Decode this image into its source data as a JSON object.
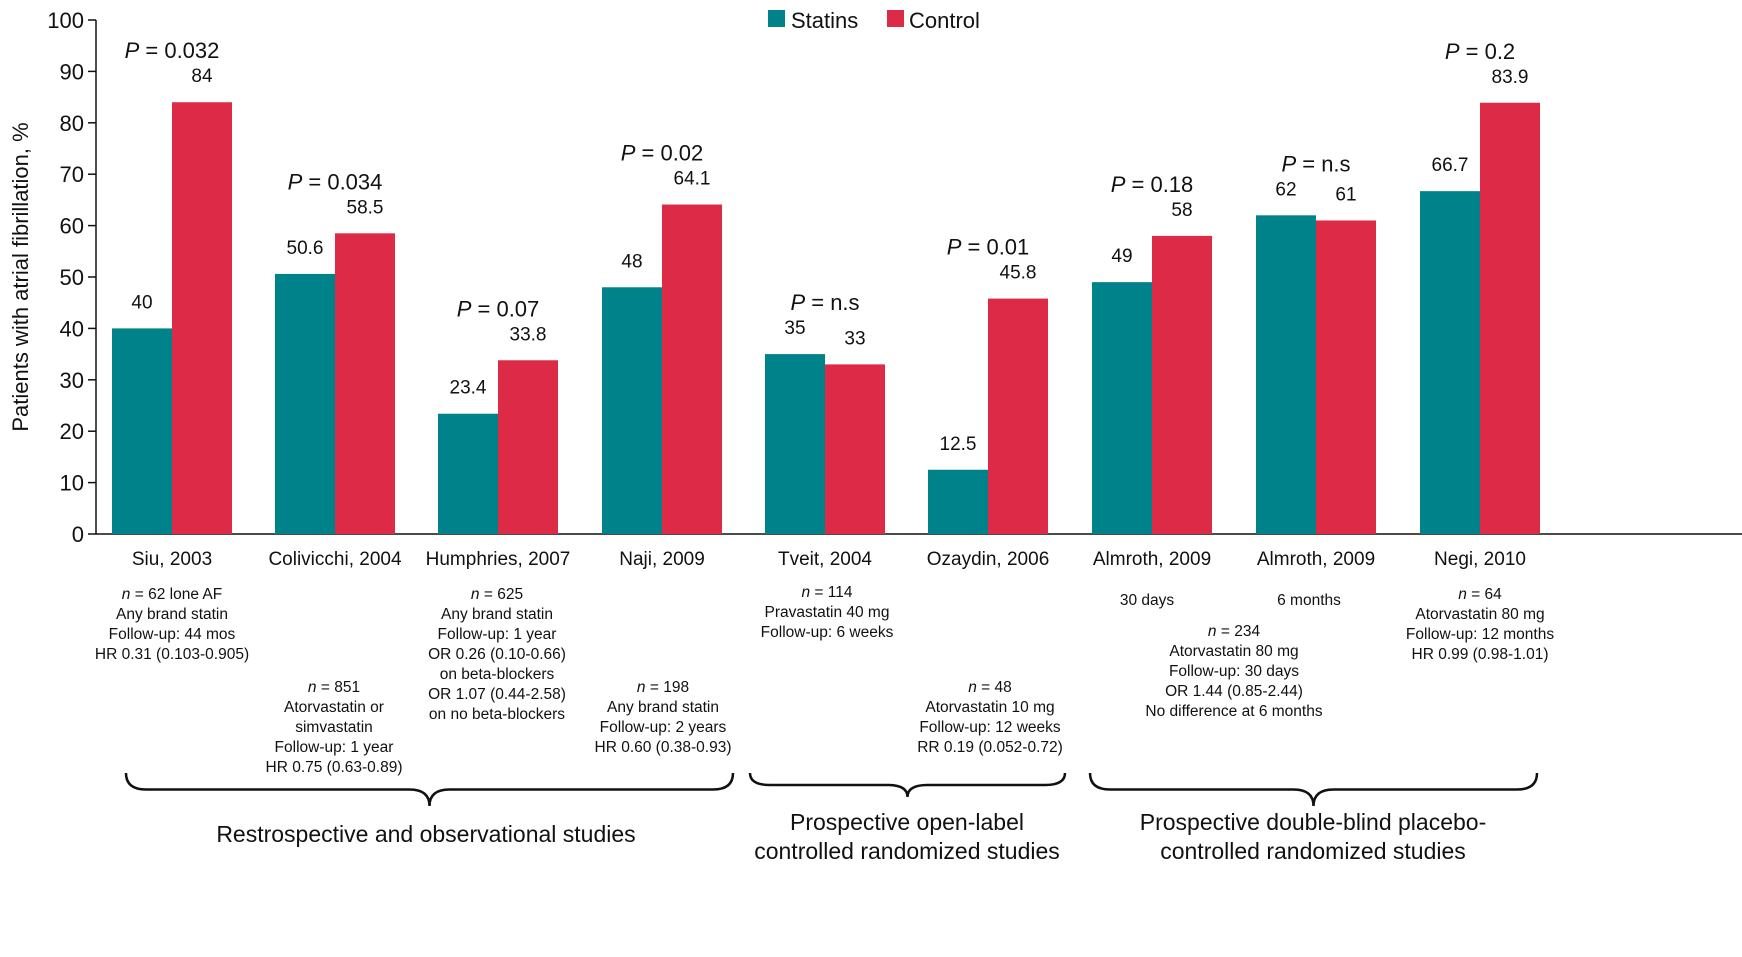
{
  "chart_data": {
    "type": "bar",
    "ylabel": "Patients with atrial fibrillation, %",
    "ylim": [
      0,
      100
    ],
    "yticks": [
      0,
      10,
      20,
      30,
      40,
      50,
      60,
      70,
      80,
      90,
      100
    ],
    "legend_position": "top-center",
    "grid": false,
    "categories": [
      "Siu, 2003",
      "Colivicchi, 2004",
      "Humphries, 2007",
      "Naji, 2009",
      "Tveit, 2004",
      "Ozaydin, 2006",
      "Almroth, 2009",
      "Almroth, 2009",
      "Negi, 2010"
    ],
    "series": [
      {
        "name": "Statins",
        "color": "#00828a",
        "values": [
          40,
          50.6,
          23.4,
          48,
          35,
          12.5,
          49,
          62,
          66.7
        ],
        "labels": [
          "40",
          "50.6",
          "23.4",
          "48",
          "35",
          "12.5",
          "49",
          "62",
          "66.7"
        ]
      },
      {
        "name": "Control",
        "color": "#dd2a46",
        "values": [
          84,
          58.5,
          33.8,
          64.1,
          33,
          45.8,
          58,
          61,
          83.9
        ],
        "labels": [
          "84",
          "58.5",
          "33.8",
          "64.1",
          "33",
          "45.8",
          "58",
          "61",
          "83.9"
        ]
      }
    ],
    "pvalues": [
      {
        "p": "P",
        "rest": " = 0.032"
      },
      {
        "p": "P",
        "rest": " = 0.034"
      },
      {
        "p": "P",
        "rest": " = 0.07"
      },
      {
        "p": "P",
        "rest": " = 0.02"
      },
      {
        "p": "P",
        "rest": " = n.s"
      },
      {
        "p": "P",
        "rest": " = 0.01"
      },
      {
        "p": "P",
        "rest": " = 0.18"
      },
      {
        "p": "P",
        "rest": " = n.s"
      },
      {
        "p": "P",
        "rest": " = 0.2"
      }
    ],
    "annotations": [
      {
        "lines": [
          {
            "n": "62 lone AF"
          },
          "Any brand statin",
          "Follow-up: 44 mos",
          "HR 0.31 (0.103-0.905)"
        ]
      },
      {
        "lines": [
          {
            "n": "851"
          },
          "Atorvastatin or",
          "simvastatin",
          "Follow-up: 1 year",
          "HR 0.75 (0.63-0.89)"
        ]
      },
      {
        "lines": [
          {
            "n": "625"
          },
          "Any brand statin",
          "Follow-up: 1 year",
          "OR 0.26 (0.10-0.66)",
          "on beta-blockers",
          "OR 1.07 (0.44-2.58)",
          "on no beta-blockers"
        ]
      },
      {
        "lines": [
          {
            "n": "198"
          },
          "Any brand statin",
          "Follow-up: 2 years",
          "HR 0.60 (0.38-0.93)"
        ]
      },
      {
        "lines": [
          {
            "n": "114"
          },
          "Pravastatin 40 mg",
          "Follow-up: 6 weeks"
        ]
      },
      {
        "lines": [
          {
            "n": "48"
          },
          "Atorvastatin 10 mg",
          "Follow-up: 12 weeks",
          "RR 0.19 (0.052-0.72)"
        ]
      },
      {
        "lines": [
          "30 days"
        ]
      },
      {
        "lines": [
          "6 months"
        ]
      },
      {
        "lines": [
          {
            "n": "234"
          },
          "Atorvastatin 80 mg",
          "Follow-up: 30 days",
          "OR 1.44 (0.85-2.44)",
          "No difference at  6 months"
        ]
      },
      {
        "lines": [
          {
            "n": "64"
          },
          "Atorvastatin 80 mg",
          "Follow-up: 12 months",
          "HR 0.99 (0.98-1.01)"
        ]
      }
    ],
    "groups": [
      {
        "lines": [
          "Restrospective and observational studies"
        ]
      },
      {
        "lines": [
          "Prospective open-label",
          "controlled randomized studies"
        ]
      },
      {
        "lines": [
          "Prospective double-blind placebo-",
          "controlled randomized studies"
        ]
      }
    ]
  }
}
